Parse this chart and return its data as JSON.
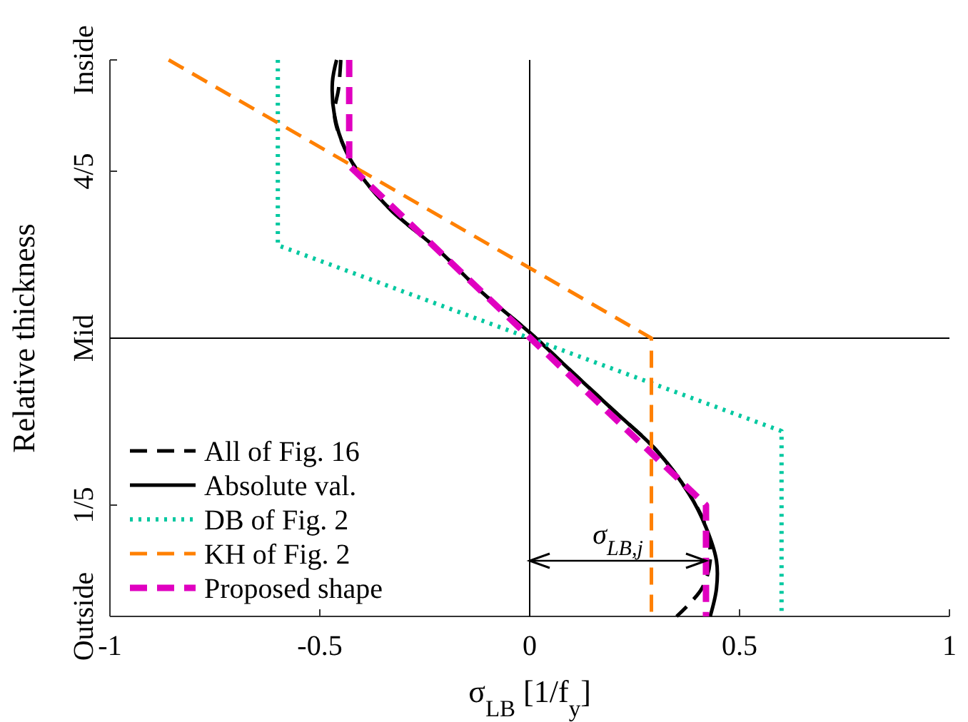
{
  "chart_data": {
    "type": "line",
    "xlabel": "σ$_{LB}$ [1/f$_{y}$]",
    "ylabel": "Relative thickness",
    "xlim": [
      -1,
      1
    ],
    "xticks": [
      -1,
      -0.5,
      0,
      0.5,
      1
    ],
    "ylim": [
      0,
      1
    ],
    "yticks": [
      {
        "value": 0,
        "label": "Outside"
      },
      {
        "value": 0.2,
        "label": "1/5"
      },
      {
        "value": 0.5,
        "label": "Mid"
      },
      {
        "value": 0.8,
        "label": "4/5"
      },
      {
        "value": 1,
        "label": "Inside"
      }
    ],
    "grid": false,
    "legend": "bottom left",
    "marker": "none",
    "ref_lines": [
      {
        "axis": "x",
        "value": 0,
        "color": "#000000",
        "line_style": "solid"
      },
      {
        "axis": "y",
        "value": 0.5,
        "color": "#000000",
        "line_style": "solid"
      }
    ],
    "annotations": [
      "σ$_{LB,j}$"
    ],
    "series": [
      {
        "name": "All of Fig. 16",
        "color": "#000000",
        "line_style": "dashed",
        "x": [
          -0.45,
          -0.455,
          -0.465,
          -0.44,
          -0.4,
          -0.33,
          -0.22,
          -0.11,
          0,
          0.1,
          0.2,
          0.3,
          0.38,
          0.42,
          0.43,
          0.41,
          0.35
        ],
        "values": [
          1,
          0.95,
          0.9,
          0.84,
          0.79,
          0.73,
          0.66,
          0.58,
          0.51,
          0.44,
          0.37,
          0.3,
          0.22,
          0.16,
          0.1,
          0.05,
          0
        ]
      },
      {
        "name": "Absolute val.",
        "color": "#000000",
        "line_style": "solid",
        "x": [
          -0.46,
          -0.47,
          -0.465,
          -0.44,
          -0.4,
          -0.33,
          -0.22,
          -0.11,
          0,
          0.1,
          0.2,
          0.3,
          0.38,
          0.42,
          0.445,
          0.445,
          0.43
        ],
        "values": [
          1,
          0.96,
          0.9,
          0.84,
          0.79,
          0.73,
          0.66,
          0.58,
          0.51,
          0.44,
          0.37,
          0.3,
          0.22,
          0.16,
          0.1,
          0.05,
          0
        ]
      },
      {
        "name": "DB of Fig. 2",
        "color": "#00c8a0",
        "line_style": "dotted",
        "x": [
          -0.6,
          -0.6,
          0.6,
          0.6
        ],
        "values": [
          1,
          0.667,
          0.333,
          0
        ]
      },
      {
        "name": "KH of Fig. 2",
        "color": "#ff8000",
        "line_style": "dashed",
        "x": [
          -0.86,
          0.29,
          0.29
        ],
        "values": [
          1,
          0.5,
          0
        ]
      },
      {
        "name": "Proposed shape",
        "color": "#e000c0",
        "line_style": "dashed",
        "x": [
          -0.43,
          -0.43,
          0.42,
          0.42
        ],
        "values": [
          1,
          0.81,
          0.2,
          0
        ]
      }
    ]
  }
}
